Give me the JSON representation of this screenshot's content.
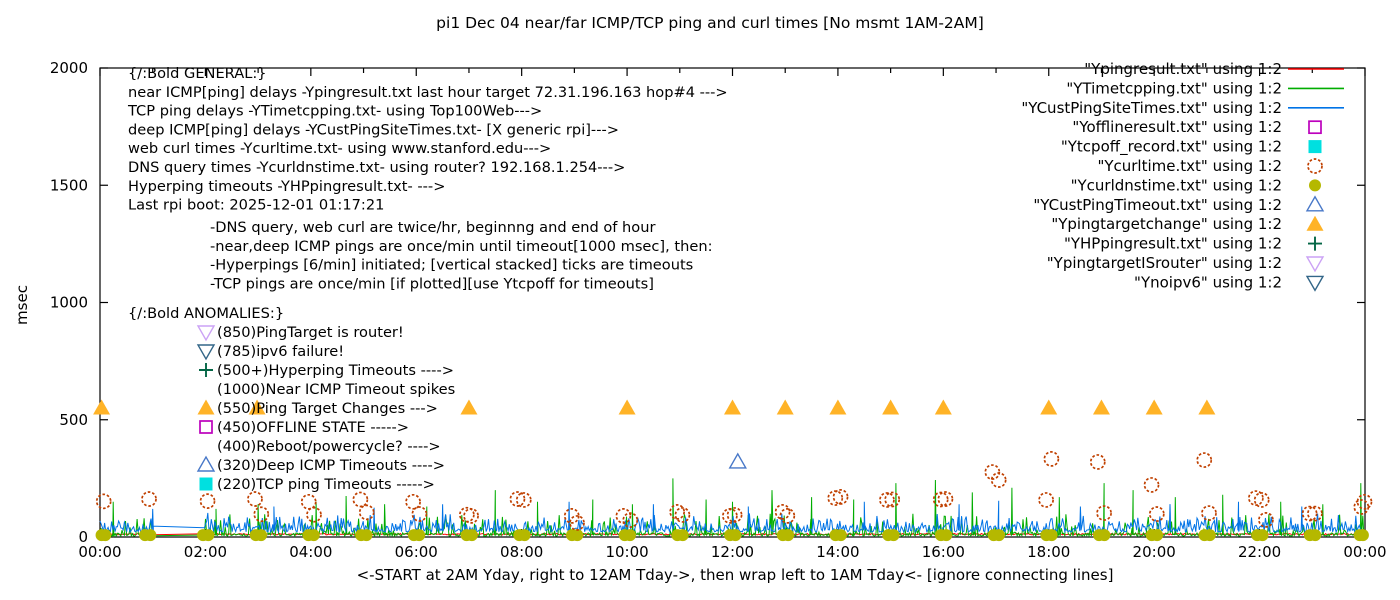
{
  "title": "pi1 Dec 04  near/far ICMP/TCP ping and curl times [No msmt 1AM-2AM]",
  "chart_data": {
    "type": "line",
    "ylabel": "msec",
    "xlabel": "<-START at 2AM Yday, right to 12AM Tday->, then wrap left to 1AM Tday<- [ignore connecting lines]",
    "ylim": [
      0,
      2000
    ],
    "xlim_hours": [
      0,
      24
    ],
    "grid": false,
    "x_tick_labels": [
      "00:00",
      "02:00",
      "04:00",
      "06:00",
      "08:00",
      "10:00",
      "12:00",
      "14:00",
      "16:00",
      "18:00",
      "20:00",
      "22:00",
      "00:00"
    ],
    "y_tick_values": [
      0,
      500,
      1000,
      1500,
      2000
    ],
    "measurement_gap_hours": [
      1.02,
      1.98
    ],
    "lines": [
      {
        "name": "Ypingresult.txt",
        "label": "near ICMP ping delays",
        "color": "#ff0000",
        "profile": "flat",
        "base": 9,
        "jitter": 6,
        "spikes": []
      },
      {
        "name": "YTimetcpping.txt",
        "label": "TCP ping delays",
        "color": "#00ad00",
        "profile": "spiky",
        "base": 4,
        "jitter": 95,
        "spikes": [
          [
            0.25,
            150
          ],
          [
            2.2,
            120
          ],
          [
            3.0,
            140
          ],
          [
            4.1,
            150
          ],
          [
            4.67,
            175
          ],
          [
            5.4,
            140
          ],
          [
            6.2,
            130
          ],
          [
            7.5,
            200
          ],
          [
            8.3,
            150
          ],
          [
            9.35,
            160
          ],
          [
            10.1,
            140
          ],
          [
            10.87,
            250
          ],
          [
            11.5,
            160
          ],
          [
            12.0,
            150
          ],
          [
            12.75,
            200
          ],
          [
            13.5,
            170
          ],
          [
            14.3,
            160
          ],
          [
            15.1,
            230
          ],
          [
            15.85,
            243
          ],
          [
            16.55,
            190
          ],
          [
            17.3,
            210
          ],
          [
            18.2,
            170
          ],
          [
            19.05,
            230
          ],
          [
            19.6,
            200
          ],
          [
            20.4,
            170
          ],
          [
            21.3,
            180
          ],
          [
            22.4,
            150
          ],
          [
            23.2,
            140
          ],
          [
            23.92,
            230
          ]
        ]
      },
      {
        "name": "YCustPingSiteTimes.txt",
        "label": "deep ICMP ping delays",
        "color": "#0073e6",
        "profile": "band",
        "base": 22,
        "jitter": 85,
        "spikes": [
          [
            1.0,
            120
          ],
          [
            3.3,
            130
          ],
          [
            5.2,
            125
          ],
          [
            6.5,
            140
          ],
          [
            8.9,
            150
          ],
          [
            10.5,
            140
          ],
          [
            12.3,
            130
          ],
          [
            14.5,
            150
          ],
          [
            16.3,
            140
          ],
          [
            17.05,
            155
          ],
          [
            18.6,
            130
          ],
          [
            20.3,
            140
          ],
          [
            21.6,
            150
          ],
          [
            22.8,
            130
          ]
        ]
      }
    ],
    "points": {
      "curl_times": {
        "file": "Ycurltime.txt",
        "marker": "circle-open",
        "color": "#c04000",
        "data": [
          [
            0.07,
            152
          ],
          [
            0.93,
            162
          ],
          [
            2.04,
            153
          ],
          [
            2.94,
            162
          ],
          [
            3.06,
            97
          ],
          [
            3.96,
            150
          ],
          [
            4.06,
            95
          ],
          [
            4.94,
            160
          ],
          [
            5.06,
            105
          ],
          [
            5.94,
            150
          ],
          [
            6.06,
            98
          ],
          [
            6.96,
            95
          ],
          [
            7.04,
            90
          ],
          [
            7.92,
            162
          ],
          [
            8.04,
            158
          ],
          [
            8.95,
            90
          ],
          [
            9.05,
            60
          ],
          [
            9.93,
            90
          ],
          [
            10.06,
            72
          ],
          [
            10.95,
            107
          ],
          [
            11.05,
            94
          ],
          [
            11.95,
            90
          ],
          [
            12.04,
            94
          ],
          [
            12.95,
            107
          ],
          [
            13.04,
            90
          ],
          [
            13.95,
            166
          ],
          [
            14.05,
            171
          ],
          [
            14.93,
            158
          ],
          [
            15.03,
            160
          ],
          [
            15.95,
            160
          ],
          [
            16.04,
            162
          ],
          [
            16.93,
            277
          ],
          [
            17.05,
            243
          ],
          [
            17.95,
            158
          ],
          [
            18.05,
            333
          ],
          [
            18.93,
            320
          ],
          [
            19.05,
            102
          ],
          [
            19.95,
            222
          ],
          [
            20.05,
            98
          ],
          [
            20.95,
            328
          ],
          [
            21.04,
            102
          ],
          [
            21.93,
            166
          ],
          [
            22.04,
            158
          ],
          [
            22.12,
            73
          ],
          [
            22.95,
            100
          ],
          [
            23.05,
            100
          ],
          [
            23.93,
            128
          ],
          [
            23.99,
            150
          ]
        ]
      },
      "dns_times": {
        "file": "Ycurldnstime.txt",
        "marker": "circle-filled",
        "color": "#b5b800",
        "value": 8,
        "hours": [
          0,
          0.9,
          2,
          3,
          4,
          5,
          6,
          7,
          8,
          9,
          10,
          11,
          12,
          13,
          14,
          15,
          16,
          17,
          18,
          19,
          20,
          21,
          22,
          23,
          24
        ]
      },
      "ping_target_changes": {
        "file": "Ypingtargetchange",
        "marker": "triangle-up-filled",
        "color": "#ffb327",
        "value": 550,
        "hours": [
          0.03,
          2.98,
          7.0,
          10.0,
          12.0,
          13.0,
          14.0,
          15.0,
          16.0,
          18.0,
          19.0,
          20.0,
          21.0
        ]
      },
      "deep_icmp_timeouts": {
        "file": "YCustPingTimeout.txt",
        "marker": "triangle-up-open",
        "color": "#4878c8",
        "data": [
          [
            12.1,
            320
          ]
        ]
      }
    },
    "legend": {
      "position": "top-right",
      "entries": [
        {
          "label": "\"Ypingresult.txt\" using 1:2",
          "marker": "line",
          "color": "#ff0000"
        },
        {
          "label": "\"YTimetcpping.txt\" using 1:2",
          "marker": "line",
          "color": "#00ad00"
        },
        {
          "label": "\"YCustPingSiteTimes.txt\" using 1:2",
          "marker": "line",
          "color": "#0073e6"
        },
        {
          "label": "\"Yofflineresult.txt\" using 1:2",
          "marker": "square-open",
          "color": "#bd00bd"
        },
        {
          "label": "\"Ytcpoff_record.txt\" using 1:2",
          "marker": "square-filled",
          "color": "#00e0e0"
        },
        {
          "label": "\"Ycurltime.txt\" using 1:2",
          "marker": "circle-open",
          "color": "#c04000"
        },
        {
          "label": "\"Ycurldnstime.txt\" using 1:2",
          "marker": "circle-filled",
          "color": "#b5b800"
        },
        {
          "label": "\"YCustPingTimeout.txt\" using 1:2",
          "marker": "triangle-up-open",
          "color": "#4878c8"
        },
        {
          "label": "\"Ypingtargetchange\" using 1:2",
          "marker": "triangle-up-filled",
          "color": "#ffb327"
        },
        {
          "label": "\"YHPpingresult.txt\" using 1:2",
          "marker": "plus",
          "color": "#046645"
        },
        {
          "label": "\"YpingtargetISrouter\" using 1:2",
          "marker": "triangle-down-open",
          "color": "#cba2f5"
        },
        {
          "label": "\"Ynoipv6\" using 1:2",
          "marker": "triangle-down-open",
          "color": "#336688"
        }
      ]
    },
    "annotations": {
      "general": [
        "{/:Bold GENERAL:}",
        "near ICMP[ping] delays -Ypingresult.txt last hour target 72.31.196.163 hop#4 --->",
        "TCP ping delays -YTimetcpping.txt- using Top100Web--->",
        "deep ICMP[ping] delays -YCustPingSiteTimes.txt- [X generic rpi]--->",
        "web curl times -Ycurltime.txt- using www.stanford.edu--->",
        "DNS query times -Ycurldnstime.txt- using router? 192.168.1.254--->",
        "Hyperping timeouts -YHPpingresult.txt- --->",
        "Last rpi boot: 2025-12-01 01:17:21"
      ],
      "rules": [
        "-DNS query, web curl are twice/hr, beginnng and end of hour",
        "-near,deep ICMP pings are once/min until timeout[1000 msec], then:",
        " -Hyperpings [6/min] initiated; [vertical stacked] ticks are timeouts",
        "-TCP pings are once/min [if plotted][use Ytcpoff for timeouts]"
      ],
      "anomalies": {
        "heading": "{/:Bold ANOMALIES:}",
        "items": [
          {
            "marker": "triangle-down-open",
            "color": "#cba2f5",
            "text": "(850)PingTarget is router!"
          },
          {
            "marker": "triangle-down-open",
            "color": "#336688",
            "text": "(785)ipv6 failure!"
          },
          {
            "marker": "plus",
            "color": "#046645",
            "text": "(500+)Hyperping Timeouts ---->"
          },
          {
            "marker": "none",
            "color": "",
            "text": "(1000)Near ICMP Timeout spikes"
          },
          {
            "marker": "triangle-up-filled",
            "color": "#ffb327",
            "text": "(550)Ping Target Changes --->"
          },
          {
            "marker": "square-open",
            "color": "#bd00bd",
            "text": "(450)OFFLINE STATE ----->"
          },
          {
            "marker": "none",
            "color": "",
            "text": "(400)Reboot/powercycle? ---->"
          },
          {
            "marker": "triangle-up-open",
            "color": "#4878c8",
            "text": "(320)Deep ICMP Timeouts ---->"
          },
          {
            "marker": "square-filled",
            "color": "#00e0e0",
            "text": "(220)TCP ping Timeouts ----->"
          }
        ]
      }
    }
  }
}
